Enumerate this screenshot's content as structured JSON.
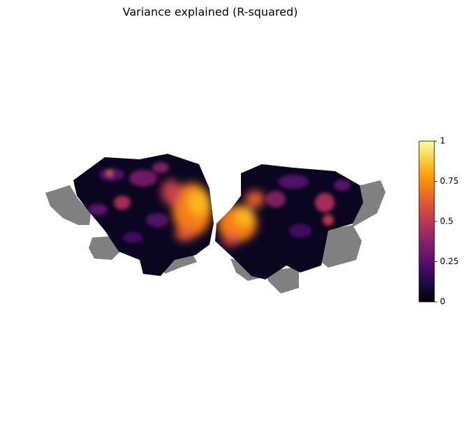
{
  "chart_data": {
    "type": "flatmap",
    "title": "Variance explained (R-squared)",
    "colormap": "inferno",
    "clim": [
      0,
      1
    ],
    "cticks": [
      0,
      0.25,
      0.5,
      0.75,
      1
    ]
  }
}
